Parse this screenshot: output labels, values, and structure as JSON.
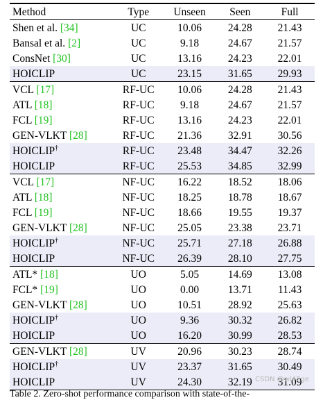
{
  "table": {
    "headers": [
      "Method",
      "Type",
      "Unseen",
      "Seen",
      "Full"
    ],
    "groups": [
      {
        "rows": [
          {
            "method": "Shen et al. ",
            "ref": "[34]",
            "sup": "",
            "type": "UC",
            "unseen": "10.06",
            "seen": "24.28",
            "full": "21.43",
            "highlight": false,
            "bold": []
          },
          {
            "method": "Bansal et al. ",
            "ref": "[2]",
            "sup": "",
            "type": "UC",
            "unseen": "9.18",
            "seen": "24.67",
            "full": "21.57",
            "highlight": false,
            "bold": []
          },
          {
            "method": "ConsNet ",
            "ref": "[30]",
            "sup": "",
            "type": "UC",
            "unseen": "13.16",
            "seen": "24.23",
            "full": "22.01",
            "highlight": false,
            "bold": []
          },
          {
            "method": "HOICLIP",
            "ref": "",
            "sup": "",
            "type": "UC",
            "unseen": "23.15",
            "seen": "31.65",
            "full": "29.93",
            "highlight": true,
            "bold": [
              "method",
              "unseen",
              "seen",
              "full"
            ]
          }
        ]
      },
      {
        "rows": [
          {
            "method": "VCL ",
            "ref": "[17]",
            "sup": "",
            "type": "RF-UC",
            "unseen": "10.06",
            "seen": "24.28",
            "full": "21.43",
            "highlight": false,
            "bold": []
          },
          {
            "method": "ATL ",
            "ref": "[18]",
            "sup": "",
            "type": "RF-UC",
            "unseen": "9.18",
            "seen": "24.67",
            "full": "21.57",
            "highlight": false,
            "bold": []
          },
          {
            "method": "FCL ",
            "ref": "[19]",
            "sup": "",
            "type": "RF-UC",
            "unseen": "13.16",
            "seen": "24.23",
            "full": "22.01",
            "highlight": false,
            "bold": []
          },
          {
            "method": "GEN-VLKT ",
            "ref": "[28]",
            "sup": "",
            "type": "RF-UC",
            "unseen": "21.36",
            "seen": "32.91",
            "full": "30.56",
            "highlight": false,
            "bold": []
          },
          {
            "method": "HOICLIP",
            "ref": "",
            "sup": "†",
            "type": "RF-UC",
            "unseen": "23.48",
            "seen": "34.47",
            "full": "32.26",
            "highlight": true,
            "bold": [
              "method"
            ]
          },
          {
            "method": "HOICLIP",
            "ref": "",
            "sup": "",
            "type": "RF-UC",
            "unseen": "25.53",
            "seen": "34.85",
            "full": "32.99",
            "highlight": true,
            "bold": [
              "method",
              "unseen",
              "seen",
              "full"
            ]
          }
        ]
      },
      {
        "rows": [
          {
            "method": "VCL ",
            "ref": "[17]",
            "sup": "",
            "type": "NF-UC",
            "unseen": "16.22",
            "seen": "18.52",
            "full": "18.06",
            "highlight": false,
            "bold": []
          },
          {
            "method": "ATL ",
            "ref": "[18]",
            "sup": "",
            "type": "NF-UC",
            "unseen": "18.25",
            "seen": "18.78",
            "full": "18.67",
            "highlight": false,
            "bold": []
          },
          {
            "method": "FCL ",
            "ref": "[19]",
            "sup": "",
            "type": "NF-UC",
            "unseen": "18.66",
            "seen": "19.55",
            "full": "19.37",
            "highlight": false,
            "bold": []
          },
          {
            "method": "GEN-VLKT ",
            "ref": "[28]",
            "sup": "",
            "type": "NF-UC",
            "unseen": "25.05",
            "seen": "23.38",
            "full": "23.71",
            "highlight": false,
            "bold": []
          },
          {
            "method": "HOICLIP",
            "ref": "",
            "sup": "†",
            "type": "NF-UC",
            "unseen": "25.71",
            "seen": "27.18",
            "full": "26.88",
            "highlight": true,
            "bold": [
              "method"
            ]
          },
          {
            "method": "HOICLIP",
            "ref": "",
            "sup": "",
            "type": "NF-UC",
            "unseen": "26.39",
            "seen": "28.10",
            "full": "27.75",
            "highlight": true,
            "bold": [
              "method",
              "unseen",
              "seen",
              "full"
            ]
          }
        ]
      },
      {
        "rows": [
          {
            "method": "ATL* ",
            "ref": "[18]",
            "sup": "",
            "type": "UO",
            "unseen": "5.05",
            "seen": "14.69",
            "full": "13.08",
            "highlight": false,
            "bold": []
          },
          {
            "method": "FCL* ",
            "ref": "[19]",
            "sup": "",
            "type": "UO",
            "unseen": "0.00",
            "seen": "13.71",
            "full": "11.43",
            "highlight": false,
            "bold": []
          },
          {
            "method": "GEN-VLKT ",
            "ref": "[28]",
            "sup": "",
            "type": "UO",
            "unseen": "10.51",
            "seen": "28.92",
            "full": "25.63",
            "highlight": false,
            "bold": []
          },
          {
            "method": "HOICLIP",
            "ref": "",
            "sup": "†",
            "type": "UO",
            "unseen": "9.36",
            "seen": "30.32",
            "full": "26.82",
            "highlight": true,
            "bold": [
              "method"
            ]
          },
          {
            "method": "HOICLIP",
            "ref": "",
            "sup": "",
            "type": "UO",
            "unseen": "16.20",
            "seen": "30.99",
            "full": "28.53",
            "highlight": true,
            "bold": [
              "method",
              "unseen",
              "seen",
              "full"
            ]
          }
        ]
      },
      {
        "rows": [
          {
            "method": "GEN-VLKT ",
            "ref": "[28]",
            "sup": "",
            "type": "UV",
            "unseen": "20.96",
            "seen": "30.23",
            "full": "28.74",
            "highlight": false,
            "bold": []
          },
          {
            "method": "HOICLIP",
            "ref": "",
            "sup": "†",
            "type": "UV",
            "unseen": "23.37",
            "seen": "31.65",
            "full": "30.49",
            "highlight": true,
            "bold": [
              "method"
            ]
          },
          {
            "method": "HOICLIP",
            "ref": "",
            "sup": "",
            "type": "UV",
            "unseen": "24.30",
            "seen": "32.19",
            "full": "31.09",
            "highlight": true,
            "bold": [
              "method",
              "unseen",
              "seen",
              "full"
            ]
          }
        ]
      }
    ]
  },
  "caption": "Table 2. Zero-shot performance comparison with state-of-the-",
  "watermark": "CSDN @wl42ge",
  "colors": {
    "highlight": "#ececf8",
    "citation": "#22c322"
  }
}
